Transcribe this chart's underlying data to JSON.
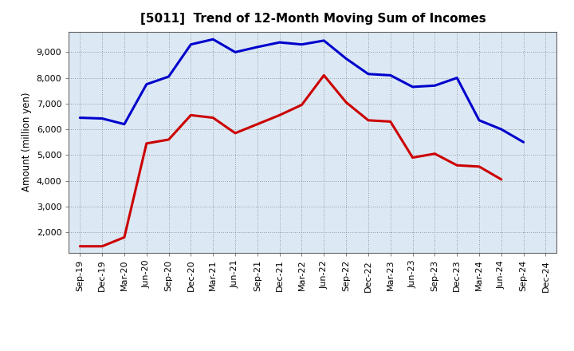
{
  "title": "[5011]  Trend of 12-Month Moving Sum of Incomes",
  "ylabel": "Amount (million yen)",
  "x_labels": [
    "Sep-19",
    "Dec-19",
    "Mar-20",
    "Jun-20",
    "Sep-20",
    "Dec-20",
    "Mar-21",
    "Jun-21",
    "Sep-21",
    "Dec-21",
    "Mar-22",
    "Jun-22",
    "Sep-22",
    "Dec-22",
    "Mar-23",
    "Jun-23",
    "Sep-23",
    "Dec-23",
    "Mar-24",
    "Jun-24",
    "Sep-24",
    "Dec-24"
  ],
  "ordinary_income": [
    6450,
    6420,
    6200,
    7750,
    8050,
    9300,
    9500,
    9000,
    9200,
    9380,
    9300,
    9450,
    8750,
    8150,
    8100,
    7650,
    7700,
    8000,
    6350,
    6000,
    5500,
    null
  ],
  "net_income": [
    1450,
    1450,
    1800,
    5450,
    5600,
    6550,
    6450,
    5850,
    6200,
    6550,
    6950,
    8100,
    7050,
    6350,
    6300,
    4900,
    5050,
    4600,
    4550,
    4050,
    null,
    null
  ],
  "ordinary_color": "#0000cc",
  "net_color": "#cc0000",
  "ylim_min": 1200,
  "ylim_max": 9800,
  "yticks": [
    2000,
    3000,
    4000,
    5000,
    6000,
    7000,
    8000,
    9000
  ],
  "bg_color": "#ffffff",
  "plot_bg_color": "#dce9f5",
  "grid_color": "#999999",
  "line_width": 2.2,
  "title_fontsize": 11,
  "axis_fontsize": 8.5,
  "tick_fontsize": 8
}
